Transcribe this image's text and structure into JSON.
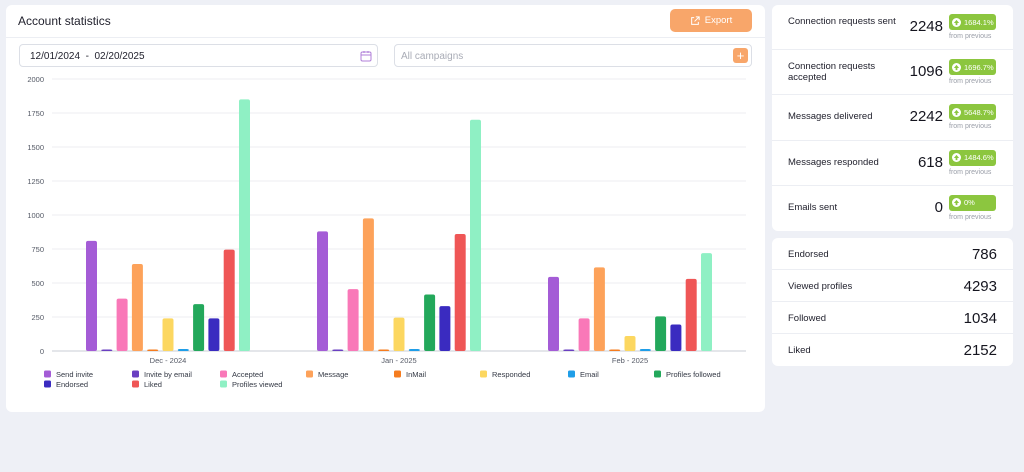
{
  "header": {
    "title": "Account statistics",
    "export_label": "Export"
  },
  "filters": {
    "date_range": "12/01/2024  -  02/20/2025",
    "campaign_placeholder": "All campaigns",
    "add_symbol": "+"
  },
  "chart_data": {
    "type": "bar",
    "categories": [
      "Dec - 2024",
      "Jan - 2025",
      "Feb - 2025"
    ],
    "ylim": [
      0,
      2000
    ],
    "yticks": [
      0,
      250,
      500,
      750,
      1000,
      1250,
      1500,
      1750,
      2000
    ],
    "legend_placement": "bottom",
    "series": [
      {
        "name": "Send invite",
        "color": "#a45cd6",
        "values": [
          810,
          880,
          545
        ]
      },
      {
        "name": "Invite by email",
        "color": "#6a3fc1",
        "values": [
          10,
          10,
          10
        ]
      },
      {
        "name": "Accepted",
        "color": "#f978b8",
        "values": [
          385,
          455,
          240
        ]
      },
      {
        "name": "Message",
        "color": "#fda25a",
        "values": [
          640,
          975,
          615
        ]
      },
      {
        "name": "InMail",
        "color": "#f57c1f",
        "values": [
          10,
          10,
          10
        ]
      },
      {
        "name": "Responded",
        "color": "#fcd760",
        "values": [
          240,
          245,
          110
        ]
      },
      {
        "name": "Email",
        "color": "#1f9ee8",
        "values": [
          15,
          15,
          15
        ]
      },
      {
        "name": "Profiles followed",
        "color": "#23a85b",
        "values": [
          345,
          415,
          255
        ]
      },
      {
        "name": "Endorsed",
        "color": "#3a2bc0",
        "values": [
          240,
          330,
          195
        ]
      },
      {
        "name": "Liked",
        "color": "#ef5656",
        "values": [
          745,
          860,
          530
        ]
      },
      {
        "name": "Profiles viewed",
        "color": "#8ff0c4",
        "values": [
          1850,
          1700,
          720
        ]
      }
    ]
  },
  "stats_top": [
    {
      "label": "Connection requests sent",
      "value": "2248",
      "badge": "1684.1%",
      "sub": "from previous"
    },
    {
      "label": "Connection requests accepted",
      "value": "1096",
      "badge": "1696.7%",
      "sub": "from previous"
    },
    {
      "label": "Messages delivered",
      "value": "2242",
      "badge": "5648.7%",
      "sub": "from previous"
    },
    {
      "label": "Messages responded",
      "value": "618",
      "badge": "1484.6%",
      "sub": "from previous"
    },
    {
      "label": "Emails sent",
      "value": "0",
      "badge": "0%",
      "sub": "from previous"
    }
  ],
  "stats_bottom": [
    {
      "label": "Endorsed",
      "value": "786"
    },
    {
      "label": "Viewed profiles",
      "value": "4293"
    },
    {
      "label": "Followed",
      "value": "1034"
    },
    {
      "label": "Liked",
      "value": "2152"
    }
  ],
  "colors": {
    "accent": "#f8a66a",
    "badge": "#8cc63f"
  }
}
